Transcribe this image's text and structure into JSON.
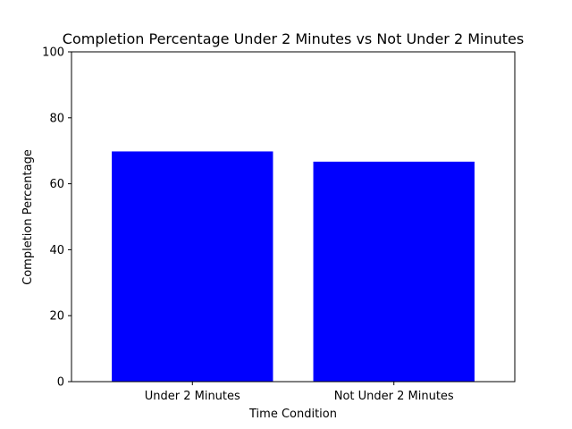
{
  "chart_data": {
    "type": "bar",
    "title": "Completion Percentage Under 2 Minutes vs Not Under 2 Minutes",
    "xlabel": "Time Condition",
    "ylabel": "Completion Percentage",
    "categories": [
      "Under 2 Minutes",
      "Not Under 2 Minutes"
    ],
    "values": [
      69.8,
      66.7
    ],
    "ylim": [
      0,
      100
    ],
    "yticks": [
      0,
      20,
      40,
      60,
      80,
      100
    ],
    "bar_color": "#0000ff",
    "grid": false
  }
}
